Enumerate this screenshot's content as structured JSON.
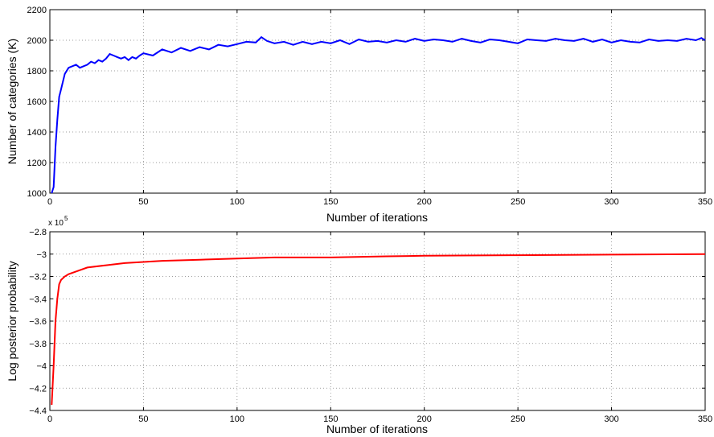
{
  "chart_data": [
    {
      "type": "line",
      "title": "",
      "xlabel": "Number of iterations",
      "ylabel": "Number of categories (K)",
      "xlim": [
        0,
        350
      ],
      "ylim": [
        1000,
        2200
      ],
      "xticks": [
        0,
        50,
        100,
        150,
        200,
        250,
        300,
        350
      ],
      "yticks": [
        1000,
        1200,
        1400,
        1600,
        1800,
        2000,
        2200
      ],
      "xtick_labels": [
        "0",
        "50",
        "100",
        "150",
        "200",
        "250",
        "300",
        "350"
      ],
      "ytick_labels": [
        "1000",
        "1200",
        "1400",
        "1600",
        "1800",
        "2000",
        "2200"
      ],
      "grid": true,
      "color": "#0000ff",
      "series": [
        {
          "x": [
            1,
            2,
            3,
            4,
            5,
            6,
            8,
            10,
            12,
            14,
            16,
            18,
            20,
            22,
            24,
            26,
            28,
            30,
            32,
            34,
            36,
            38,
            40,
            42,
            44,
            46,
            48,
            50,
            55,
            60,
            65,
            70,
            75,
            80,
            85,
            90,
            95,
            100,
            105,
            110,
            113,
            116,
            120,
            125,
            130,
            135,
            140,
            145,
            150,
            155,
            160,
            165,
            170,
            175,
            180,
            185,
            190,
            195,
            200,
            205,
            210,
            215,
            220,
            225,
            230,
            235,
            240,
            245,
            250,
            255,
            260,
            265,
            270,
            275,
            280,
            285,
            290,
            295,
            300,
            305,
            310,
            315,
            320,
            325,
            330,
            335,
            340,
            345,
            348,
            350
          ],
          "values": [
            1000,
            1040,
            1300,
            1480,
            1630,
            1680,
            1780,
            1820,
            1830,
            1840,
            1820,
            1830,
            1840,
            1860,
            1850,
            1870,
            1860,
            1880,
            1910,
            1900,
            1890,
            1880,
            1890,
            1870,
            1890,
            1880,
            1900,
            1915,
            1900,
            1940,
            1920,
            1950,
            1930,
            1955,
            1940,
            1970,
            1960,
            1975,
            1990,
            1985,
            2020,
            1995,
            1980,
            1990,
            1970,
            1990,
            1975,
            1990,
            1980,
            2000,
            1975,
            2005,
            1990,
            1995,
            1985,
            2000,
            1990,
            2010,
            1995,
            2005,
            2000,
            1990,
            2010,
            1995,
            1985,
            2005,
            2000,
            1990,
            1980,
            2005,
            2000,
            1995,
            2010,
            2000,
            1995,
            2010,
            1990,
            2005,
            1985,
            2000,
            1990,
            1985,
            2005,
            1995,
            2000,
            1995,
            2010,
            2000,
            2015,
            2000
          ]
        }
      ]
    },
    {
      "type": "line",
      "title": "",
      "xlabel": "Number of iterations",
      "ylabel": "Log posterior probability",
      "scale_exponent_label": "x 10",
      "scale_exponent_value": "5",
      "xlim": [
        0,
        350
      ],
      "ylim": [
        -4.4,
        -2.8
      ],
      "xticks": [
        0,
        50,
        100,
        150,
        200,
        250,
        300,
        350
      ],
      "yticks": [
        -4.4,
        -4.2,
        -4.0,
        -3.8,
        -3.6,
        -3.4,
        -3.2,
        -3.0,
        -2.8
      ],
      "xtick_labels": [
        "0",
        "50",
        "100",
        "150",
        "200",
        "250",
        "300",
        "350"
      ],
      "ytick_labels": [
        "−4.4",
        "−4.2",
        "−4",
        "−3.8",
        "−3.6",
        "−3.4",
        "−3.2",
        "−3",
        "−2.8"
      ],
      "grid": true,
      "color": "#ff0000",
      "series": [
        {
          "x": [
            1,
            2,
            3,
            4,
            5,
            6,
            8,
            10,
            15,
            20,
            30,
            40,
            50,
            60,
            80,
            100,
            120,
            150,
            180,
            200,
            250,
            300,
            350
          ],
          "values": [
            -4.35,
            -4.0,
            -3.6,
            -3.4,
            -3.27,
            -3.23,
            -3.2,
            -3.18,
            -3.15,
            -3.12,
            -3.1,
            -3.08,
            -3.07,
            -3.06,
            -3.05,
            -3.04,
            -3.03,
            -3.03,
            -3.02,
            -3.015,
            -3.01,
            -3.005,
            -3.0
          ]
        }
      ]
    }
  ]
}
